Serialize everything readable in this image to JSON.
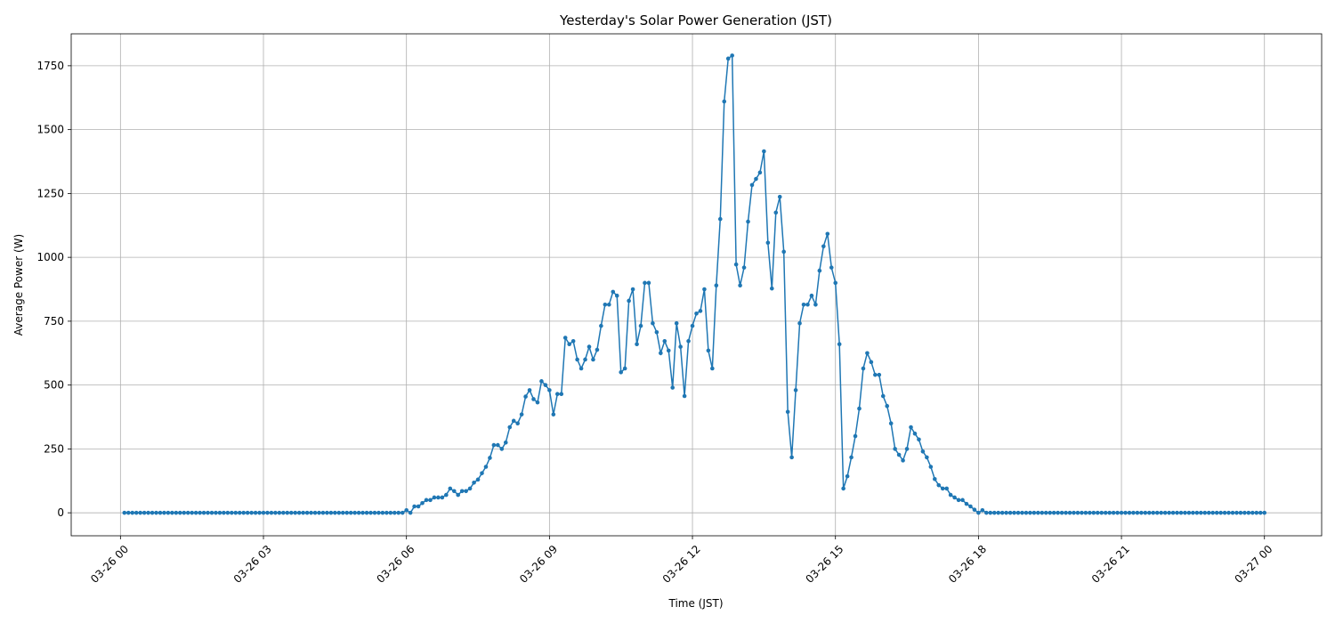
{
  "chart_data": {
    "type": "line",
    "title": "Yesterday's Solar Power Generation (JST)",
    "x_label": "Time (JST)",
    "y_label": "Average Power (W)",
    "color": "#1f77b4",
    "grid": true,
    "marker": true,
    "x": [
      5,
      10,
      15,
      20,
      25,
      30,
      35,
      40,
      45,
      50,
      55,
      60,
      65,
      70,
      75,
      80,
      85,
      90,
      95,
      100,
      105,
      110,
      115,
      120,
      125,
      130,
      135,
      140,
      145,
      150,
      155,
      160,
      165,
      170,
      175,
      180,
      185,
      190,
      195,
      200,
      205,
      210,
      215,
      220,
      225,
      230,
      235,
      240,
      245,
      250,
      255,
      260,
      265,
      270,
      275,
      280,
      285,
      290,
      295,
      300,
      305,
      310,
      315,
      320,
      325,
      330,
      335,
      340,
      345,
      350,
      355,
      360,
      365,
      370,
      375,
      380,
      385,
      390,
      395,
      400,
      405,
      410,
      415,
      420,
      425,
      430,
      435,
      440,
      445,
      450,
      455,
      460,
      465,
      470,
      475,
      480,
      485,
      490,
      495,
      500,
      505,
      510,
      515,
      520,
      525,
      530,
      535,
      540,
      545,
      550,
      555,
      560,
      565,
      570,
      575,
      580,
      585,
      590,
      595,
      600,
      605,
      610,
      615,
      620,
      625,
      630,
      635,
      640,
      645,
      650,
      655,
      660,
      665,
      670,
      675,
      680,
      685,
      690,
      695,
      700,
      705,
      710,
      715,
      720,
      725,
      730,
      735,
      740,
      745,
      750,
      755,
      760,
      765,
      770,
      775,
      780,
      785,
      790,
      795,
      800,
      805,
      810,
      815,
      820,
      825,
      830,
      835,
      840,
      845,
      850,
      855,
      860,
      865,
      870,
      875,
      880,
      885,
      890,
      895,
      900,
      905,
      910,
      915,
      920,
      925,
      930,
      935,
      940,
      945,
      950,
      955,
      960,
      965,
      970,
      975,
      980,
      985,
      990,
      995,
      1000,
      1005,
      1010,
      1015,
      1020,
      1025,
      1030,
      1035,
      1040,
      1045,
      1050,
      1055,
      1060,
      1065,
      1070,
      1075,
      1080,
      1085,
      1090,
      1095,
      1100,
      1105,
      1110,
      1115,
      1120,
      1125,
      1130,
      1135,
      1140,
      1145,
      1150,
      1155,
      1160,
      1165,
      1170,
      1175,
      1180,
      1185,
      1190,
      1195,
      1200,
      1205,
      1210,
      1215,
      1220,
      1225,
      1230,
      1235,
      1240,
      1245,
      1250,
      1255,
      1260,
      1265,
      1270,
      1275,
      1280,
      1285,
      1290,
      1295,
      1300,
      1305,
      1310,
      1315,
      1320,
      1325,
      1330,
      1335,
      1340,
      1345,
      1350,
      1355,
      1360,
      1365,
      1370,
      1375,
      1380,
      1385,
      1390,
      1395,
      1400,
      1405,
      1410,
      1415,
      1420,
      1425,
      1430,
      1435,
      1440
    ],
    "values": [
      0,
      0,
      0,
      0,
      0,
      0,
      0,
      0,
      0,
      0,
      0,
      0,
      0,
      0,
      0,
      0,
      0,
      0,
      0,
      0,
      0,
      0,
      0,
      0,
      0,
      0,
      0,
      0,
      0,
      0,
      0,
      0,
      0,
      0,
      0,
      0,
      0,
      0,
      0,
      0,
      0,
      0,
      0,
      0,
      0,
      0,
      0,
      0,
      0,
      0,
      0,
      0,
      0,
      0,
      0,
      0,
      0,
      0,
      0,
      0,
      0,
      0,
      0,
      0,
      0,
      0,
      0,
      0,
      0,
      0,
      0,
      10,
      0,
      25,
      25,
      38,
      50,
      50,
      60,
      60,
      60,
      70,
      95,
      85,
      70,
      85,
      85,
      95,
      118,
      130,
      155,
      180,
      215,
      265,
      265,
      250,
      275,
      335,
      360,
      350,
      385,
      455,
      480,
      445,
      432,
      515,
      500,
      480,
      385,
      465,
      465,
      685,
      660,
      672,
      600,
      565,
      600,
      650,
      600,
      638,
      732,
      815,
      815,
      865,
      850,
      550,
      565,
      830,
      875,
      660,
      732,
      900,
      900,
      742,
      707,
      625,
      672,
      635,
      490,
      742,
      650,
      457,
      672,
      732,
      780,
      790,
      875,
      635,
      565,
      890,
      1150,
      1610,
      1778,
      1790,
      972,
      890,
      960,
      1140,
      1283,
      1307,
      1332,
      1415,
      1057,
      878,
      1175,
      1237,
      1022,
      395,
      217,
      480,
      742,
      815,
      815,
      850,
      815,
      948,
      1043,
      1092,
      960,
      900,
      660,
      95,
      143,
      217,
      300,
      408,
      565,
      625,
      590,
      540,
      540,
      457,
      418,
      350,
      250,
      227,
      205,
      250,
      335,
      310,
      287,
      240,
      217,
      180,
      132,
      108,
      95,
      95,
      70,
      60,
      50,
      50,
      35,
      25,
      12,
      0,
      10,
      0,
      0,
      0,
      0,
      0,
      0,
      0,
      0,
      0,
      0,
      0,
      0,
      0,
      0,
      0,
      0,
      0,
      0,
      0,
      0,
      0,
      0,
      0,
      0,
      0,
      0,
      0,
      0,
      0,
      0,
      0,
      0,
      0,
      0,
      0,
      0,
      0,
      0,
      0,
      0,
      0,
      0,
      0,
      0,
      0,
      0,
      0,
      0,
      0,
      0,
      0,
      0,
      0,
      0,
      0,
      0,
      0,
      0,
      0,
      0,
      0,
      0,
      0,
      0,
      0,
      0,
      0,
      0,
      0,
      0,
      0
    ],
    "xlim": [
      -62,
      1512
    ],
    "xticks": [
      {
        "value": 0,
        "label": "03-26 00"
      },
      {
        "value": 180,
        "label": "03-26 03"
      },
      {
        "value": 360,
        "label": "03-26 06"
      },
      {
        "value": 540,
        "label": "03-26 09"
      },
      {
        "value": 720,
        "label": "03-26 12"
      },
      {
        "value": 900,
        "label": "03-26 15"
      },
      {
        "value": 1080,
        "label": "03-26 18"
      },
      {
        "value": 1260,
        "label": "03-26 21"
      },
      {
        "value": 1440,
        "label": "03-27 00"
      }
    ],
    "ylim": [
      -90,
      1875
    ],
    "yticks": [
      0,
      250,
      500,
      750,
      1000,
      1250,
      1500,
      1750
    ]
  }
}
